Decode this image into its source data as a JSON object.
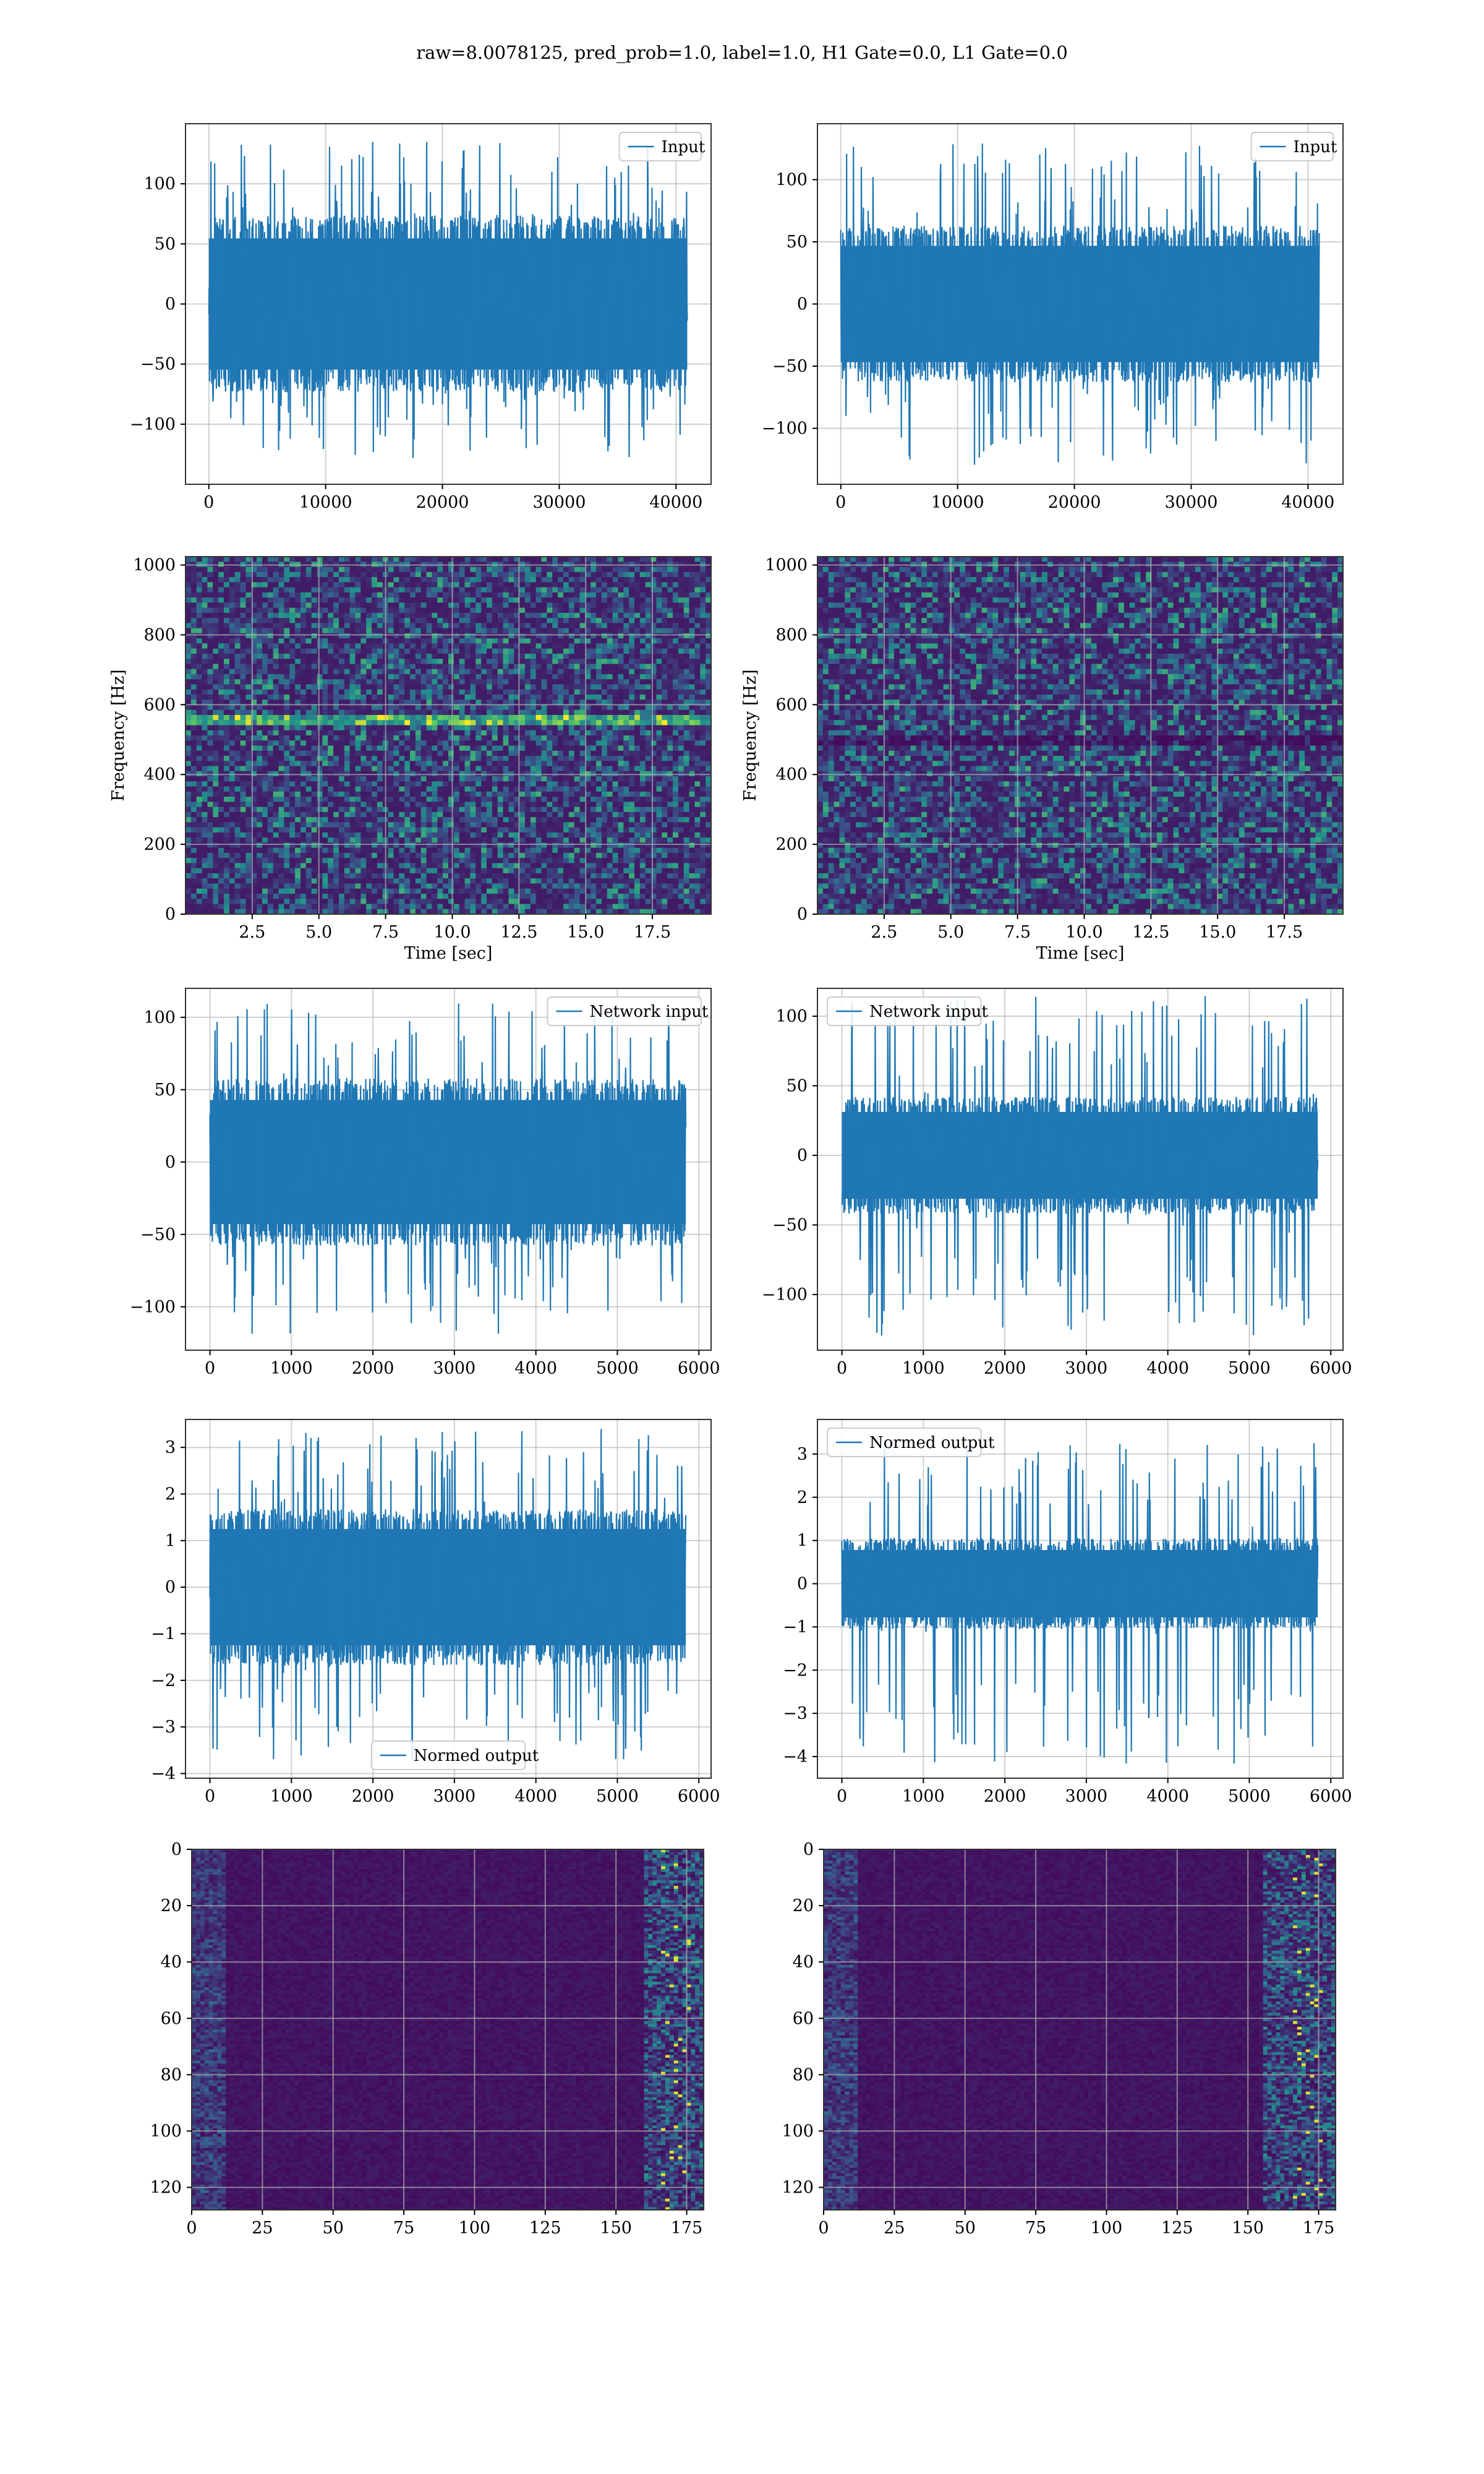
{
  "title": "raw=8.0078125, pred_prob=1.0, label=1.0, H1 Gate=0.0, L1 Gate=0.0",
  "colors": {
    "line": "#1f77b4",
    "grid": "#b0b0b0",
    "viridis_dark": "#440154",
    "viridis_mid": "#3b528b",
    "viridis_teal": "#21918c",
    "viridis_green": "#5ec962",
    "viridis_yellow": "#fde725"
  },
  "chart_data": [
    {
      "type": "line",
      "panel": "row1-left",
      "series": [
        {
          "name": "Input"
        }
      ],
      "legend_loc": "upper right",
      "x_range": [
        0,
        40960
      ],
      "xlim": [
        -2000,
        43000
      ],
      "ylim": [
        -150,
        150
      ],
      "xticks": [
        0,
        10000,
        20000,
        30000,
        40000
      ],
      "xtick_labels": [
        "0",
        "10000",
        "20000",
        "30000",
        "40000"
      ],
      "yticks": [
        -100,
        -50,
        0,
        50,
        100
      ],
      "ytick_labels": [
        "−100",
        "−50",
        "0",
        "50",
        "100"
      ],
      "envelope": {
        "core": 70,
        "spike": 135,
        "neg_spike": -130
      },
      "seed": 11,
      "xlabel": "",
      "ylabel": ""
    },
    {
      "type": "line",
      "panel": "row1-right",
      "series": [
        {
          "name": "Input"
        }
      ],
      "legend_loc": "upper right",
      "x_range": [
        0,
        40960
      ],
      "xlim": [
        -2000,
        43000
      ],
      "ylim": [
        -145,
        145
      ],
      "xticks": [
        0,
        10000,
        20000,
        30000,
        40000
      ],
      "xtick_labels": [
        "0",
        "10000",
        "20000",
        "30000",
        "40000"
      ],
      "yticks": [
        -100,
        -50,
        0,
        50,
        100
      ],
      "ytick_labels": [
        "−100",
        "−50",
        "0",
        "50",
        "100"
      ],
      "envelope": {
        "core": 60,
        "spike": 130,
        "neg_spike": -130
      },
      "seed": 23,
      "xlabel": "",
      "ylabel": ""
    },
    {
      "type": "heatmap",
      "panel": "row2-left",
      "xlim": [
        0,
        19.7
      ],
      "ylim": [
        0,
        1024
      ],
      "xticks": [
        2.5,
        5.0,
        7.5,
        10.0,
        12.5,
        15.0,
        17.5
      ],
      "xtick_labels": [
        "2.5",
        "5.0",
        "7.5",
        "10.0",
        "12.5",
        "15.0",
        "17.5"
      ],
      "yticks": [
        0,
        200,
        400,
        600,
        800,
        1000
      ],
      "ytick_labels": [
        "0",
        "200",
        "400",
        "600",
        "800",
        "1000"
      ],
      "xlabel": "Time [sec]",
      "ylabel": "Frequency [Hz]",
      "bright_bands_hz": [
        560
      ],
      "seed": 31
    },
    {
      "type": "heatmap",
      "panel": "row2-right",
      "xlim": [
        0,
        19.7
      ],
      "ylim": [
        0,
        1024
      ],
      "xticks": [
        2.5,
        5.0,
        7.5,
        10.0,
        12.5,
        15.0,
        17.5
      ],
      "xtick_labels": [
        "2.5",
        "5.0",
        "7.5",
        "10.0",
        "12.5",
        "15.0",
        "17.5"
      ],
      "yticks": [
        0,
        200,
        400,
        600,
        800,
        1000
      ],
      "ytick_labels": [
        "0",
        "200",
        "400",
        "600",
        "800",
        "1000"
      ],
      "xlabel": "Time [sec]",
      "ylabel": "Frequency [Hz]",
      "dark_bands_hz": [
        500
      ],
      "seed": 47
    },
    {
      "type": "line",
      "panel": "row3-left",
      "series": [
        {
          "name": "Network input"
        }
      ],
      "legend_loc": "upper right",
      "x_range": [
        0,
        5840
      ],
      "xlim": [
        -300,
        6150
      ],
      "ylim": [
        -130,
        120
      ],
      "xticks": [
        0,
        1000,
        2000,
        3000,
        4000,
        5000,
        6000
      ],
      "xtick_labels": [
        "0",
        "1000",
        "2000",
        "3000",
        "4000",
        "5000",
        "6000"
      ],
      "yticks": [
        -100,
        -50,
        0,
        50,
        100
      ],
      "ytick_labels": [
        "−100",
        "−50",
        "0",
        "50",
        "100"
      ],
      "envelope": {
        "core": 55,
        "spike": 110,
        "neg_spike": -120
      },
      "seed": 53,
      "xlabel": "",
      "ylabel": ""
    },
    {
      "type": "line",
      "panel": "row3-right",
      "series": [
        {
          "name": "Network input"
        }
      ],
      "legend_loc": "upper left",
      "x_range": [
        0,
        5840
      ],
      "xlim": [
        -300,
        6150
      ],
      "ylim": [
        -140,
        120
      ],
      "xticks": [
        0,
        1000,
        2000,
        3000,
        4000,
        5000,
        6000
      ],
      "xtick_labels": [
        "0",
        "1000",
        "2000",
        "3000",
        "4000",
        "5000",
        "6000"
      ],
      "yticks": [
        -100,
        -50,
        0,
        50,
        100
      ],
      "ytick_labels": [
        "−100",
        "−50",
        "0",
        "50",
        "100"
      ],
      "envelope": {
        "core": 40,
        "spike": 115,
        "neg_spike": -130
      },
      "seed": 67,
      "xlabel": "",
      "ylabel": ""
    },
    {
      "type": "line",
      "panel": "row4-left",
      "series": [
        {
          "name": "Normed output"
        }
      ],
      "legend_loc": "lower center",
      "x_range": [
        0,
        5840
      ],
      "xlim": [
        -300,
        6150
      ],
      "ylim": [
        -4.1,
        3.6
      ],
      "xticks": [
        0,
        1000,
        2000,
        3000,
        4000,
        5000,
        6000
      ],
      "xtick_labels": [
        "0",
        "1000",
        "2000",
        "3000",
        "4000",
        "5000",
        "6000"
      ],
      "yticks": [
        -4,
        -3,
        -2,
        -1,
        0,
        1,
        2,
        3
      ],
      "ytick_labels": [
        "−4",
        "−3",
        "−2",
        "−1",
        "0",
        "1",
        "2",
        "3"
      ],
      "envelope": {
        "core": 1.6,
        "spike": 3.4,
        "neg_spike": -3.8
      },
      "seed": 71,
      "xlabel": "",
      "ylabel": ""
    },
    {
      "type": "line",
      "panel": "row4-right",
      "series": [
        {
          "name": "Normed output"
        }
      ],
      "legend_loc": "upper left",
      "x_range": [
        0,
        5840
      ],
      "xlim": [
        -300,
        6150
      ],
      "ylim": [
        -4.5,
        3.8
      ],
      "xticks": [
        0,
        1000,
        2000,
        3000,
        4000,
        5000,
        6000
      ],
      "xtick_labels": [
        "0",
        "1000",
        "2000",
        "3000",
        "4000",
        "5000",
        "6000"
      ],
      "yticks": [
        -4,
        -3,
        -2,
        -1,
        0,
        1,
        2,
        3
      ],
      "ytick_labels": [
        "−4",
        "−3",
        "−2",
        "−1",
        "0",
        "1",
        "2",
        "3"
      ],
      "envelope": {
        "core": 1.0,
        "spike": 3.3,
        "neg_spike": -4.2
      },
      "seed": 83,
      "xlabel": "",
      "ylabel": ""
    },
    {
      "type": "heatmap",
      "panel": "row5-left",
      "xlim": [
        0,
        181
      ],
      "ylim": [
        128,
        0
      ],
      "xticks": [
        0,
        25,
        50,
        75,
        100,
        125,
        150,
        175
      ],
      "xtick_labels": [
        "0",
        "25",
        "50",
        "75",
        "100",
        "125",
        "150",
        "175"
      ],
      "yticks": [
        0,
        20,
        40,
        60,
        80,
        100,
        120
      ],
      "ytick_labels": [
        "0",
        "20",
        "40",
        "60",
        "80",
        "100",
        "120"
      ],
      "hot_columns": [
        160,
        181
      ],
      "seed": 97,
      "xlabel": "",
      "ylabel": ""
    },
    {
      "type": "heatmap",
      "panel": "row5-right",
      "xlim": [
        0,
        181
      ],
      "ylim": [
        128,
        0
      ],
      "xticks": [
        0,
        25,
        50,
        75,
        100,
        125,
        150,
        175
      ],
      "xtick_labels": [
        "0",
        "25",
        "50",
        "75",
        "100",
        "125",
        "150",
        "175"
      ],
      "yticks": [
        0,
        20,
        40,
        60,
        80,
        100,
        120
      ],
      "ytick_labels": [
        "0",
        "20",
        "40",
        "60",
        "80",
        "100",
        "120"
      ],
      "hot_columns": [
        155,
        181
      ],
      "seed": 101,
      "xlabel": "",
      "ylabel": ""
    }
  ]
}
